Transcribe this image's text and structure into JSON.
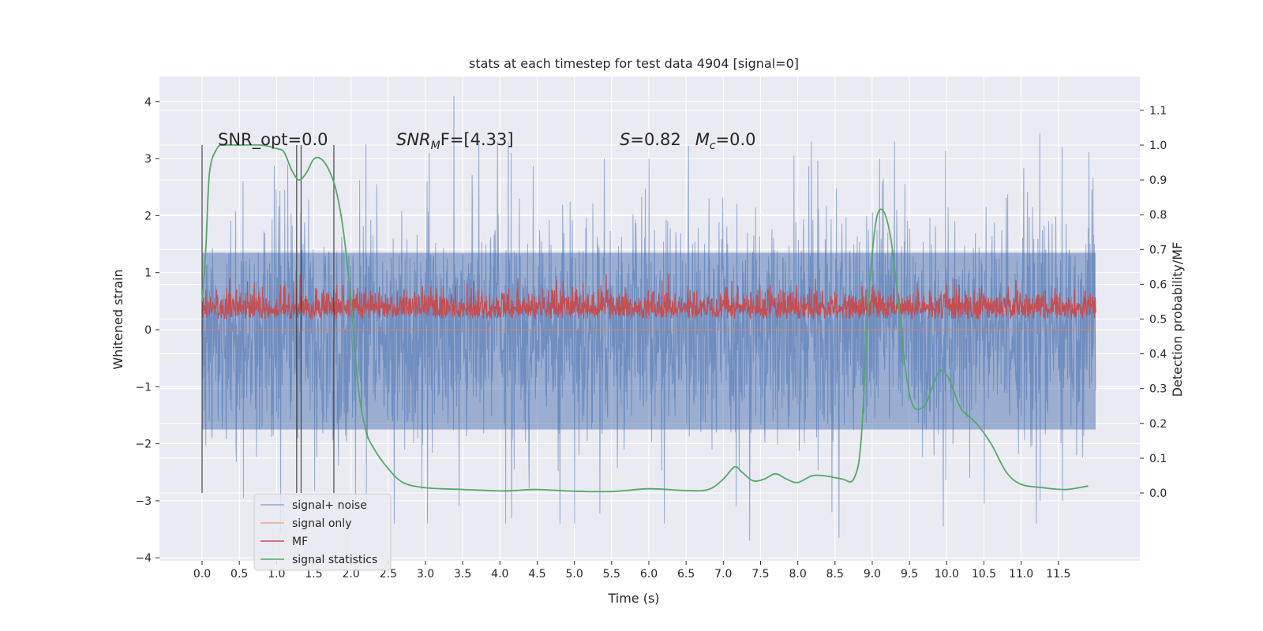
{
  "chart_data": {
    "type": "line",
    "title": "stats at each timestep for test data 4904 [signal=0]",
    "xlabel": "Time (s)",
    "ylabel": "Whitened strain",
    "ylabel_right": "Detection probability/MF",
    "xlim": [
      -0.5,
      12.5
    ],
    "ylim": [
      -4.2,
      4.4
    ],
    "ylim_right": [
      -0.2,
      1.2
    ],
    "x_ticks": [
      0.0,
      0.5,
      1.0,
      1.5,
      2.0,
      2.5,
      3.0,
      3.5,
      4.0,
      4.5,
      5.0,
      5.5,
      6.0,
      6.5,
      7.0,
      7.5,
      8.0,
      8.5,
      9.0,
      9.5,
      10.0,
      10.5,
      11.0,
      11.5
    ],
    "x_tick_labels": [
      "0.0",
      "0.5",
      "1.0",
      "1.5",
      "2.0",
      "2.5",
      "3.0",
      "3.5",
      "4.0",
      "4.5",
      "5.0",
      "5.5",
      "6.0",
      "6.5",
      "7.0",
      "7.5",
      "8.0",
      "8.5",
      "9.0",
      "9.5",
      "10.0",
      "10.5",
      "11.0",
      "11.5"
    ],
    "y_ticks": [
      4,
      3,
      2,
      1,
      0,
      -1,
      -2,
      -3,
      -4
    ],
    "y_tick_labels": [
      "4",
      "3",
      "2",
      "1",
      "0",
      "−1",
      "−2",
      "−3",
      "−4"
    ],
    "y_ticks_right": [
      1.1,
      1.0,
      0.9,
      0.8,
      0.7,
      0.6,
      0.5,
      0.4,
      0.3,
      0.2,
      0.1,
      0.0
    ],
    "y_tick_labels_right": [
      "1.1",
      "1.0",
      "0.9",
      "0.8",
      "0.7",
      "0.6",
      "0.5",
      "0.4",
      "0.3",
      "0.2",
      "0.1",
      "0.0"
    ],
    "grid": true,
    "legend_position": "lower-left",
    "colors": {
      "background": "#eaeaf2",
      "grid": "#ffffff",
      "signal_noise": "#4c72b0",
      "signal_only": "#dd8452",
      "mf": "#c44e52",
      "signal_statistics": "#55a868",
      "vlines": "#3a3a3a"
    },
    "annotations": {
      "snr_opt": "SNR_opt=0.0",
      "snr_mf_base": "SNR",
      "snr_mf_sub": "M",
      "snr_mf_tail": "F=[4.33]",
      "s_label": "S",
      "s_value": "=0.82",
      "mc_label": "M",
      "mc_sub": "c",
      "mc_value": "=0.0"
    },
    "vertical_lines_x": [
      0.0,
      1.27,
      1.33,
      1.77
    ],
    "series": [
      {
        "name": "signal+ noise",
        "axis": "left",
        "description_stats": {
          "x_range": [
            0.0,
            12.0
          ],
          "envelope_max": 4.1,
          "envelope_min": -3.7,
          "typical_upper": 2.0,
          "typical_lower": -2.0
        },
        "peaks": [
          [
            0.55,
            2.6
          ],
          [
            1.15,
            2.9
          ],
          [
            2.2,
            3.25
          ],
          [
            3.05,
            3.1
          ],
          [
            3.38,
            4.1
          ],
          [
            4.15,
            3.1
          ],
          [
            5.4,
            3.0
          ],
          [
            6.0,
            3.0
          ],
          [
            7.95,
            3.05
          ],
          [
            9.1,
            3.0
          ],
          [
            9.3,
            3.3
          ],
          [
            11.25,
            3.45
          ],
          [
            11.55,
            3.2
          ]
        ],
        "troughs": [
          [
            0.55,
            -2.95
          ],
          [
            1.05,
            -3.55
          ],
          [
            2.2,
            -3.1
          ],
          [
            4.15,
            -3.3
          ],
          [
            4.8,
            -3.4
          ],
          [
            7.35,
            -3.7
          ],
          [
            8.55,
            -3.65
          ],
          [
            9.95,
            -3.45
          ],
          [
            10.5,
            -3.05
          ],
          [
            11.25,
            -3.0
          ],
          [
            11.55,
            -3.0
          ]
        ]
      },
      {
        "name": "signal only",
        "axis": "left",
        "x": [
          0.0,
          12.0
        ],
        "y": [
          0.0,
          0.0
        ]
      },
      {
        "name": "MF",
        "axis": "right",
        "description_stats": {
          "x_range": [
            0.0,
            12.0
          ],
          "baseline": 0.5,
          "typical_upper": 0.6,
          "peak_max": 0.63,
          "min": 0.5
        }
      },
      {
        "name": "signal statistics",
        "axis": "right",
        "x": [
          0.0,
          0.05,
          0.1,
          0.2,
          0.3,
          0.5,
          0.8,
          1.0,
          1.1,
          1.2,
          1.3,
          1.4,
          1.5,
          1.6,
          1.7,
          1.8,
          1.9,
          2.0,
          2.1,
          2.2,
          2.3,
          2.5,
          2.7,
          3.0,
          3.5,
          4.0,
          4.2,
          4.5,
          5.0,
          5.5,
          6.0,
          6.5,
          6.8,
          7.0,
          7.15,
          7.25,
          7.4,
          7.55,
          7.7,
          7.85,
          8.0,
          8.2,
          8.4,
          8.6,
          8.75,
          8.85,
          8.95,
          9.05,
          9.15,
          9.25,
          9.35,
          9.45,
          9.55,
          9.7,
          9.8,
          9.9,
          10.0,
          10.1,
          10.2,
          10.4,
          10.6,
          10.8,
          11.0,
          11.3,
          11.6,
          11.9
        ],
        "y": [
          0.55,
          0.7,
          0.92,
          0.99,
          1.0,
          1.0,
          1.0,
          0.99,
          0.98,
          0.93,
          0.9,
          0.92,
          0.96,
          0.96,
          0.93,
          0.87,
          0.75,
          0.55,
          0.3,
          0.18,
          0.13,
          0.07,
          0.03,
          0.015,
          0.01,
          0.006,
          0.007,
          0.01,
          0.005,
          0.004,
          0.012,
          0.007,
          0.01,
          0.04,
          0.075,
          0.06,
          0.035,
          0.04,
          0.055,
          0.04,
          0.03,
          0.05,
          0.048,
          0.04,
          0.04,
          0.15,
          0.55,
          0.78,
          0.81,
          0.73,
          0.55,
          0.35,
          0.25,
          0.25,
          0.3,
          0.35,
          0.34,
          0.29,
          0.24,
          0.2,
          0.14,
          0.06,
          0.025,
          0.015,
          0.01,
          0.02
        ]
      }
    ]
  }
}
